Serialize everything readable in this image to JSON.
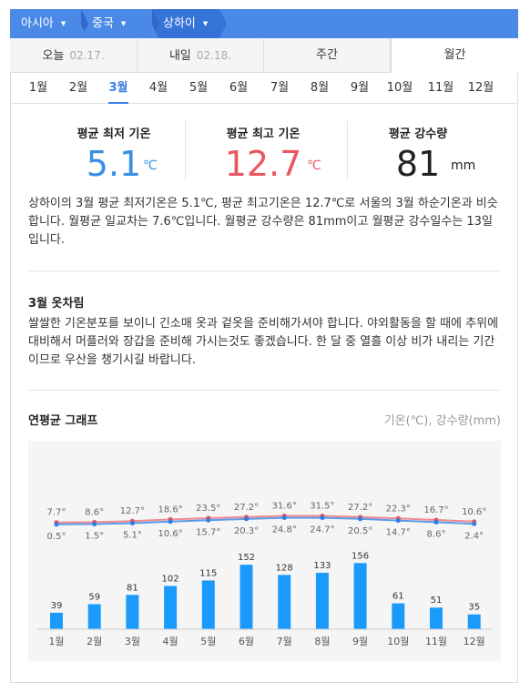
{
  "breadcrumb": {
    "items": [
      "아시아",
      "중국",
      "상하이"
    ]
  },
  "tabs": [
    {
      "label": "오늘",
      "date": "02.17."
    },
    {
      "label": "내일",
      "date": "02.18."
    },
    {
      "label": "주간",
      "date": ""
    },
    {
      "label": "월간",
      "date": ""
    }
  ],
  "active_tab": 3,
  "months": [
    "1월",
    "2월",
    "3월",
    "4월",
    "5월",
    "6월",
    "7월",
    "8월",
    "9월",
    "10월",
    "11월",
    "12월"
  ],
  "active_month": 2,
  "stats": {
    "min": {
      "label": "평균 최저 기온",
      "value": "5.1",
      "unit": "℃",
      "color": "#3a8ee6"
    },
    "max": {
      "label": "평균 최고 기온",
      "value": "12.7",
      "unit": "℃",
      "color": "#e9585f"
    },
    "rain": {
      "label": "평균 강수량",
      "value": "81",
      "unit": "mm",
      "color": "#222222"
    }
  },
  "description": "상하이의 3월 평균 최저기온은 5.1℃, 평균 최고기온은 12.7℃로 서울의 3월 하순기온과 비슷합니다. 월평균 일교차는 7.6℃입니다. 월평균 강수량은 81mm이고 월평균 강수일수는 13일입니다.",
  "clothing": {
    "title": "3월 옷차림",
    "text": "쌀쌀한 기온분포를 보이니 긴소매 옷과 겉옷을 준비해가셔야 합니다. 야외활동을 할 때에 추위에 대비해서 머플러와 장갑을 준비해 가시는것도 좋겠습니다. 한 달 중 열흘 이상 비가 내리는 기간이므로 우산을 챙기시길 바랍니다."
  },
  "graph": {
    "title": "연평균 그래프",
    "units": "기온(℃), 강수량(mm)"
  },
  "chart_data": {
    "type": "line+bar",
    "categories": [
      "1월",
      "2월",
      "3월",
      "4월",
      "5월",
      "6월",
      "7월",
      "8월",
      "9월",
      "10월",
      "11월",
      "12월"
    ],
    "series": [
      {
        "values": [
          7.7,
          8.6,
          12.7,
          18.6,
          23.5,
          27.2,
          31.6,
          31.5,
          27.2,
          22.3,
          16.7,
          10.6
        ],
        "color": "#ee8a92",
        "kind": "line"
      },
      {
        "values": [
          0.5,
          1.5,
          5.1,
          10.6,
          15.7,
          20.3,
          24.8,
          24.7,
          20.5,
          14.7,
          8.6,
          2.4
        ],
        "color": "#5b9be8",
        "kind": "line"
      },
      {
        "values": [
          39,
          59,
          81,
          102,
          115,
          152,
          128,
          133,
          156,
          61,
          51,
          35
        ],
        "color": "#1a9bfb",
        "kind": "bar"
      }
    ],
    "temp_labels_max": [
      "7.7°",
      "8.6°",
      "12.7°",
      "18.6°",
      "23.5°",
      "27.2°",
      "31.6°",
      "31.5°",
      "27.2°",
      "22.3°",
      "16.7°",
      "10.6°"
    ],
    "temp_labels_min": [
      "0.5°",
      "1.5°",
      "5.1°",
      "10.6°",
      "15.7°",
      "20.3°",
      "24.8°",
      "24.7°",
      "20.5°",
      "14.7°",
      "8.6°",
      "2.4°"
    ],
    "bar_labels": [
      "39",
      "59",
      "81",
      "102",
      "115",
      "152",
      "128",
      "133",
      "156",
      "61",
      "51",
      "35"
    ]
  }
}
